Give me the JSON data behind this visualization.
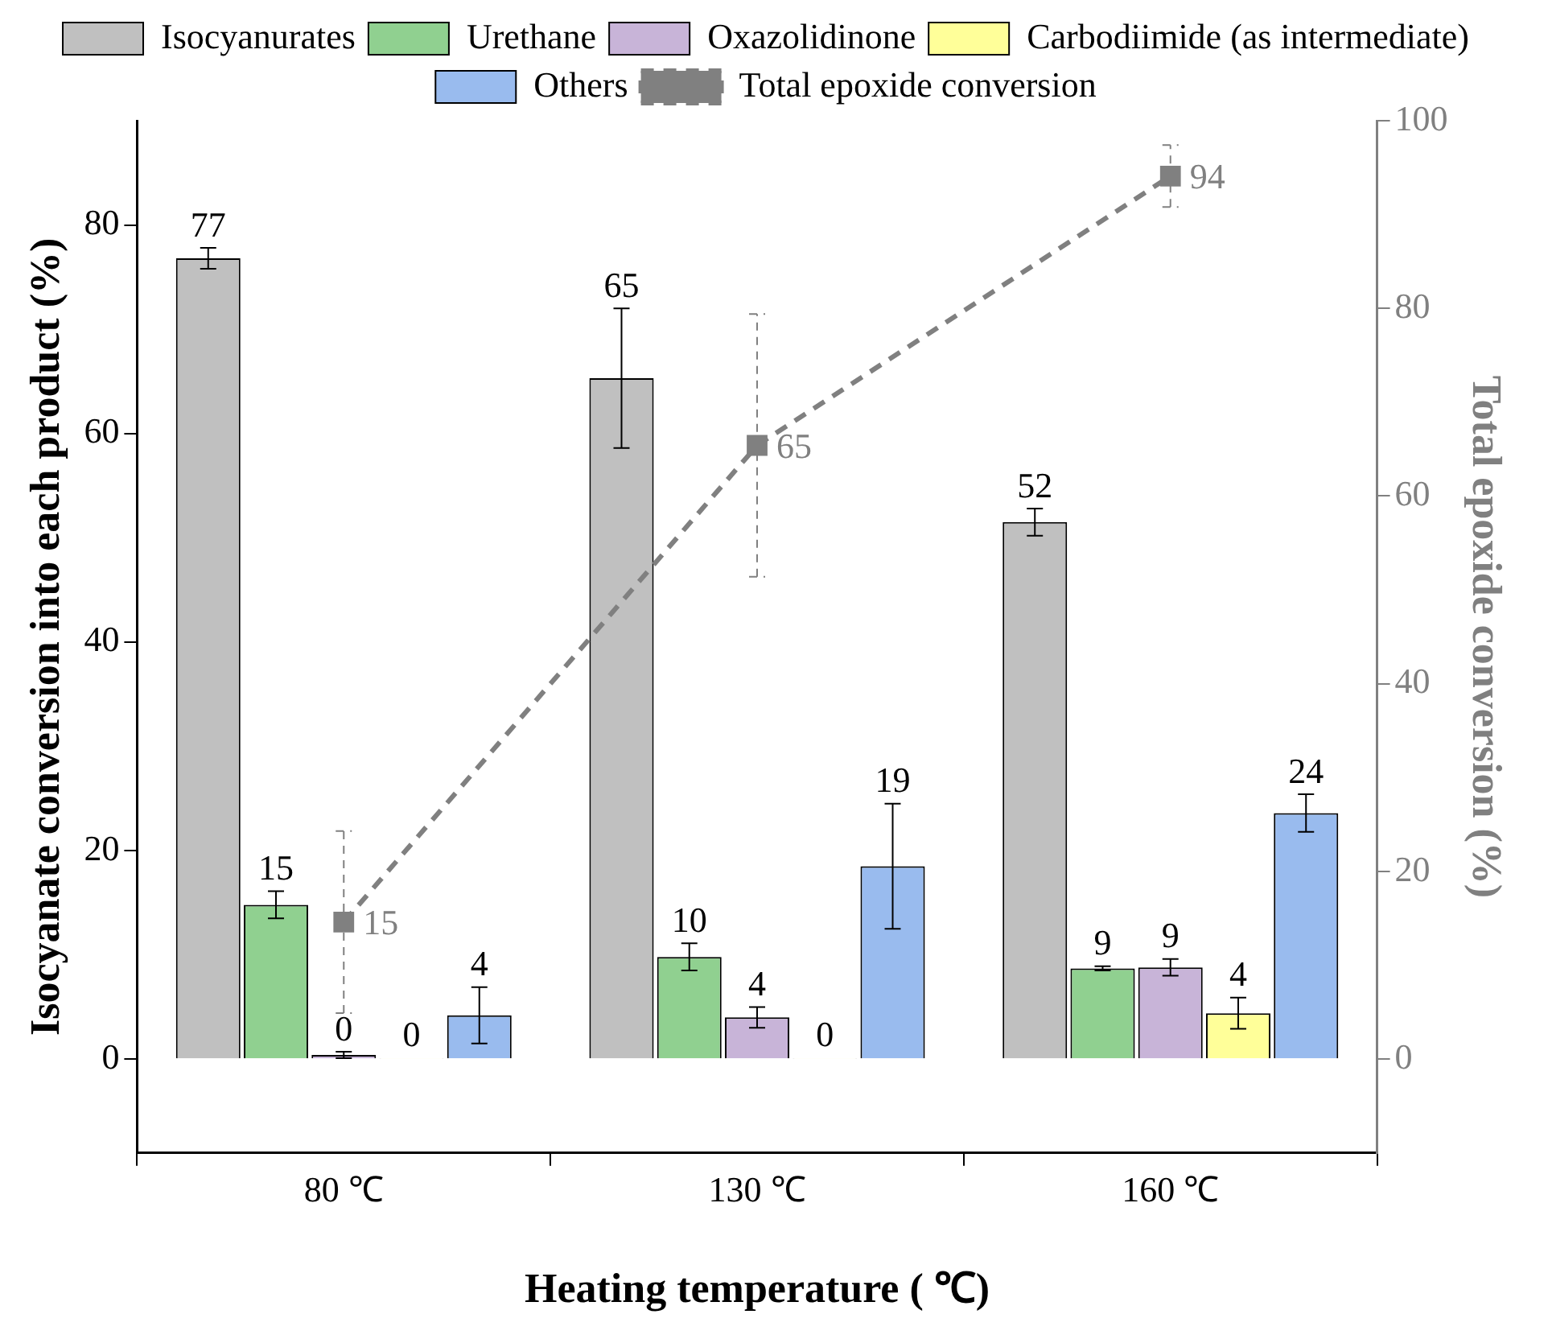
{
  "chart_data": {
    "type": "bar",
    "xlabel": "Heating temperature ( ℃)",
    "ylabel": "Isocyanate conversion into each product (%)",
    "y2label": "Total epoxide conversion (%)",
    "categories": [
      "80 ℃",
      "130 ℃",
      "160 ℃"
    ],
    "series": [
      {
        "name": "Isocyanurates",
        "color": "#c0c0c0",
        "values": [
          76.8,
          65.3,
          51.5
        ],
        "errors": [
          1,
          6.7,
          1.3
        ],
        "value_labels": [
          "77",
          "65",
          "52"
        ]
      },
      {
        "name": "Urethane",
        "color": "#90d090",
        "values": [
          14.8,
          9.8,
          8.7
        ],
        "errors": [
          1.3,
          1.3,
          0.2
        ],
        "value_labels": [
          "15",
          "10",
          "9"
        ]
      },
      {
        "name": "Oxazolidinone",
        "color": "#c8b4d8",
        "values": [
          0.4,
          4,
          8.8
        ],
        "errors": [
          0.3,
          1,
          0.8
        ],
        "value_labels": [
          "0",
          "4",
          "9"
        ]
      },
      {
        "name": "Carbodiimide (as intermediate)",
        "color": "#ffff99",
        "values": [
          0.1,
          0.1,
          4.4
        ],
        "errors": [
          null,
          null,
          1.5
        ],
        "value_labels": [
          "0",
          "0",
          "4"
        ]
      },
      {
        "name": "Others",
        "color": "#99bbee",
        "values": [
          4.2,
          18.5,
          23.6
        ],
        "errors": [
          2.7,
          6,
          1.8
        ],
        "value_labels": [
          "4",
          "19",
          "24"
        ]
      },
      {
        "name": "Total epoxide conversion",
        "type": "line",
        "axis": "y2",
        "color": "#808080",
        "line_style": "dashed",
        "marker": "square",
        "values": [
          14.6,
          65.4,
          94.1
        ],
        "errors": [
          9.7,
          14,
          3.3
        ],
        "value_labels": [
          "15",
          "65",
          "94"
        ]
      }
    ],
    "ylim": [
      -9,
      90
    ],
    "yticks": [
      0,
      20,
      40,
      60,
      80
    ],
    "y2lim": [
      -10,
      100
    ],
    "y2ticks": [
      0,
      20,
      40,
      60,
      80,
      100
    ],
    "grid": false,
    "legend": "top"
  }
}
